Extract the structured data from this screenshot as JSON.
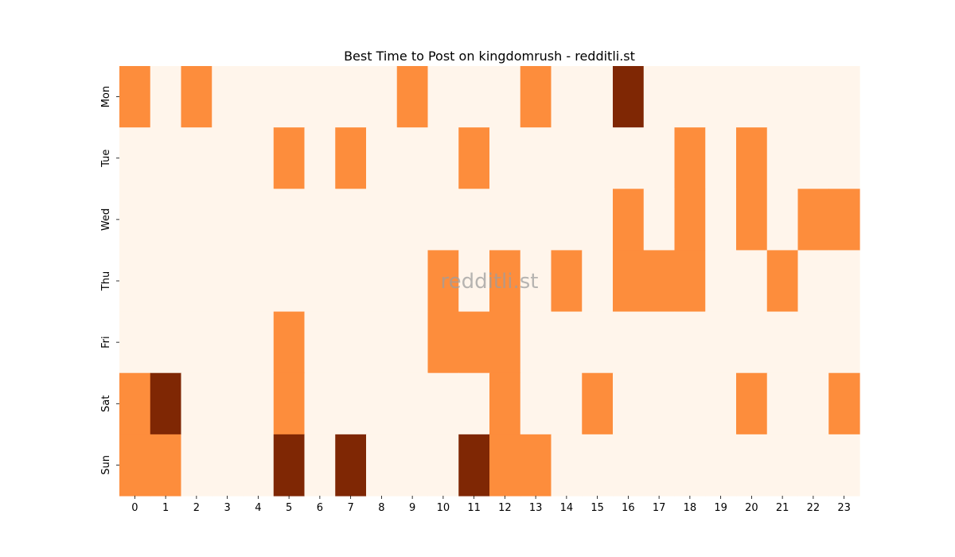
{
  "chart_data": {
    "type": "heatmap",
    "title": "Best Time to Post on kingdomrush - redditli.st",
    "watermark": "redditli.st",
    "x_labels": [
      "0",
      "1",
      "2",
      "3",
      "4",
      "5",
      "6",
      "7",
      "8",
      "9",
      "10",
      "11",
      "12",
      "13",
      "14",
      "15",
      "16",
      "17",
      "18",
      "19",
      "20",
      "21",
      "22",
      "23"
    ],
    "y_labels": [
      "Mon",
      "Tue",
      "Wed",
      "Thu",
      "Fri",
      "Sat",
      "Sun"
    ],
    "values": [
      [
        1,
        0,
        1,
        0,
        0,
        0,
        0,
        0,
        0,
        1,
        0,
        0,
        0,
        1,
        0,
        0,
        2,
        0,
        0,
        0,
        0,
        0,
        0,
        0
      ],
      [
        0,
        0,
        0,
        0,
        0,
        1,
        0,
        1,
        0,
        0,
        0,
        1,
        0,
        0,
        0,
        0,
        0,
        0,
        1,
        0,
        1,
        0,
        0,
        0
      ],
      [
        0,
        0,
        0,
        0,
        0,
        0,
        0,
        0,
        0,
        0,
        0,
        0,
        0,
        0,
        0,
        0,
        1,
        0,
        1,
        0,
        1,
        0,
        1,
        1
      ],
      [
        0,
        0,
        0,
        0,
        0,
        0,
        0,
        0,
        0,
        0,
        1,
        0,
        1,
        0,
        1,
        0,
        1,
        1,
        1,
        0,
        0,
        1,
        0,
        0
      ],
      [
        0,
        0,
        0,
        0,
        0,
        1,
        0,
        0,
        0,
        0,
        1,
        1,
        1,
        0,
        0,
        0,
        0,
        0,
        0,
        0,
        0,
        0,
        0,
        0
      ],
      [
        1,
        2,
        0,
        0,
        0,
        1,
        0,
        0,
        0,
        0,
        0,
        0,
        1,
        0,
        0,
        1,
        0,
        0,
        0,
        0,
        1,
        0,
        0,
        1
      ],
      [
        1,
        1,
        0,
        0,
        0,
        2,
        0,
        2,
        0,
        0,
        0,
        2,
        1,
        1,
        0,
        0,
        0,
        0,
        0,
        0,
        0,
        0,
        0,
        0
      ]
    ],
    "colormap": "Oranges",
    "colors": [
      "#fff5eb",
      "#fd8d3c",
      "#7f2704"
    ],
    "grid": false,
    "colorbar": false
  }
}
